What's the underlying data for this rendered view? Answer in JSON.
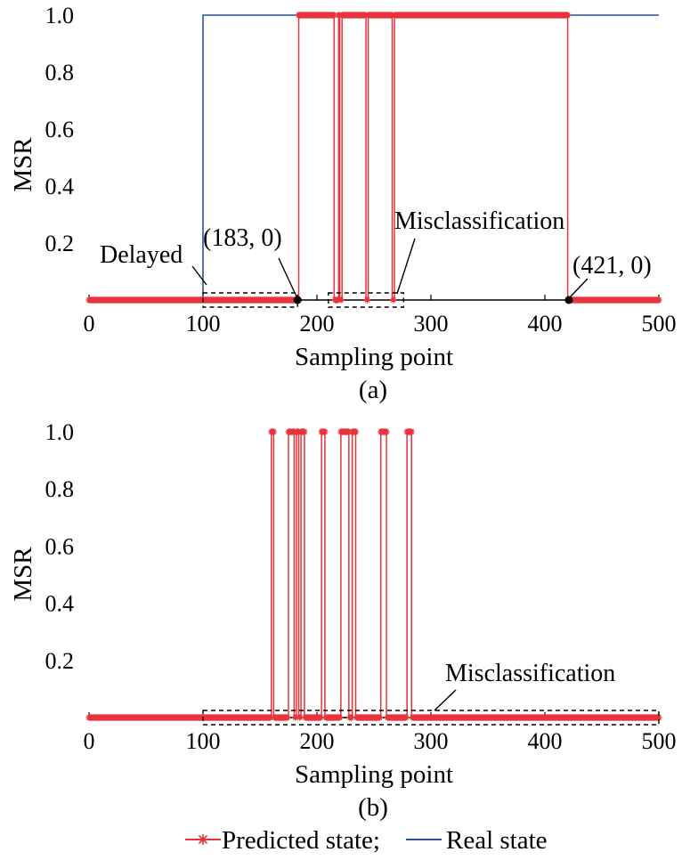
{
  "chart_data": [
    {
      "type": "line",
      "panel_label": "(a)",
      "xlabel": "Sampling point",
      "ylabel": "MSR",
      "xlim": [
        0,
        500
      ],
      "ylim": [
        0,
        1
      ],
      "xticks": [
        "0",
        "100",
        "200",
        "300",
        "400",
        "500"
      ],
      "yticks": [
        "0.2",
        "0.4",
        "0.6",
        "0.8",
        "1.0"
      ],
      "series": [
        {
          "name": "Real state",
          "color": "#2b4f9e",
          "steps": [
            [
              0,
              0
            ],
            [
              100,
              0
            ],
            [
              100,
              1
            ],
            [
              500,
              1
            ]
          ]
        },
        {
          "name": "Predicted state",
          "color": "#e8323c",
          "marker": "asterisk",
          "one_intervals": [
            [
              184,
              215
            ],
            [
              219,
              220
            ],
            [
              222,
              243
            ],
            [
              245,
              266
            ],
            [
              268,
              420
            ]
          ]
        }
      ],
      "annotations": [
        {
          "text": "Delayed",
          "box_x": [
            100,
            183
          ]
        },
        {
          "text": "(183, 0)",
          "point": [
            183,
            0
          ]
        },
        {
          "text": "Misclassification",
          "box_x": [
            210,
            276
          ]
        },
        {
          "text": "(421, 0)",
          "point": [
            421,
            0
          ]
        }
      ]
    },
    {
      "type": "line",
      "panel_label": "(b)",
      "xlabel": "Sampling point",
      "ylabel": "MSR",
      "xlim": [
        0,
        500
      ],
      "ylim": [
        0,
        1
      ],
      "xticks": [
        "0",
        "100",
        "200",
        "300",
        "400",
        "500"
      ],
      "yticks": [
        "0.2",
        "0.4",
        "0.6",
        "0.8",
        "1.0"
      ],
      "series": [
        {
          "name": "Predicted state",
          "color": "#e8323c",
          "marker": "asterisk",
          "one_intervals": [
            [
              160,
              162
            ],
            [
              175,
              180
            ],
            [
              182,
              184
            ],
            [
              186,
              189
            ],
            [
              204,
              207
            ],
            [
              221,
              228
            ],
            [
              231,
              234
            ],
            [
              256,
              261
            ],
            [
              279,
              283
            ]
          ]
        }
      ],
      "annotations": [
        {
          "text": "Misclassification",
          "box_x": [
            100,
            500
          ]
        }
      ]
    }
  ],
  "legend": {
    "predicted": "Predicted state;",
    "real": "Real state",
    "predicted_color": "#e8323c",
    "real_color": "#2b4f9e"
  }
}
